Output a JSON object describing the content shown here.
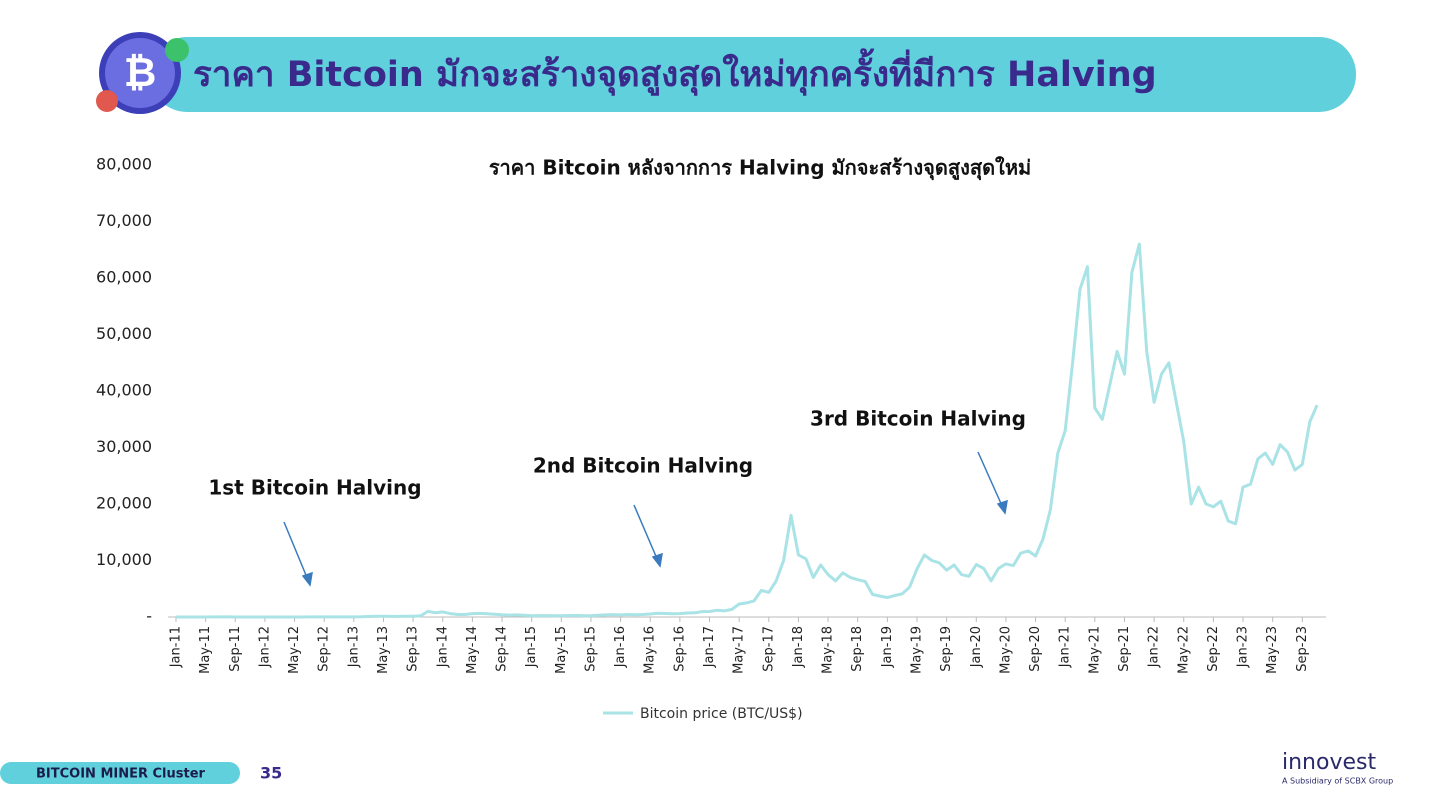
{
  "header": {
    "title": "ราคา Bitcoin มักจะสร้างจุดสูงสุดใหม่ทุกครั้งที่มีการ Halving"
  },
  "chart_data": {
    "type": "line",
    "title": "ราคา Bitcoin หลังจากการ Halving มักจะสร้างจุดสูงสุดใหม่",
    "categories": [
      "Jan-11",
      null,
      null,
      null,
      "May-11",
      null,
      null,
      null,
      "Sep-11",
      null,
      null,
      null,
      "Jan-12",
      null,
      null,
      null,
      "May-12",
      null,
      null,
      null,
      "Sep-12",
      null,
      null,
      null,
      "Jan-13",
      null,
      null,
      null,
      "May-13",
      null,
      null,
      null,
      "Sep-13",
      null,
      null,
      null,
      "Jan-14",
      null,
      null,
      null,
      "May-14",
      null,
      null,
      null,
      "Sep-14",
      null,
      null,
      null,
      "Jan-15",
      null,
      null,
      null,
      "May-15",
      null,
      null,
      null,
      "Sep-15",
      null,
      null,
      null,
      "Jan-16",
      null,
      null,
      null,
      "May-16",
      null,
      null,
      null,
      "Sep-16",
      null,
      null,
      null,
      "Jan-17",
      null,
      null,
      null,
      "May-17",
      null,
      null,
      null,
      "Sep-17",
      null,
      null,
      null,
      "Jan-18",
      null,
      null,
      null,
      "May-18",
      null,
      null,
      null,
      "Sep-18",
      null,
      null,
      null,
      "Jan-19",
      null,
      null,
      null,
      "May-19",
      null,
      null,
      null,
      "Sep-19",
      null,
      null,
      null,
      "Jan-20",
      null,
      null,
      null,
      "May-20",
      null,
      null,
      null,
      "Sep-20",
      null,
      null,
      null,
      "Jan-21",
      null,
      null,
      null,
      "May-21",
      null,
      null,
      null,
      "Sep-21",
      null,
      null,
      null,
      "Jan-22",
      null,
      null,
      null,
      "May-22",
      null,
      null,
      null,
      "Sep-22",
      null,
      null,
      null,
      "Jan-23",
      null,
      null,
      null,
      "May-23",
      null,
      null,
      null,
      "Sep-23",
      null,
      null
    ],
    "series": [
      {
        "name": "Bitcoin price (BTC/US$)",
        "color": "#a9e3e6",
        "values": [
          1,
          1,
          1,
          1,
          8,
          17,
          14,
          9,
          5,
          3,
          3,
          5,
          6,
          5,
          5,
          5,
          5,
          6,
          9,
          11,
          12,
          11,
          12,
          13,
          20,
          33,
          93,
          140,
          130,
          100,
          100,
          130,
          130,
          200,
          1000,
          750,
          900,
          600,
          450,
          450,
          600,
          640,
          590,
          480,
          390,
          340,
          380,
          320,
          220,
          250,
          250,
          230,
          230,
          260,
          285,
          230,
          235,
          310,
          380,
          430,
          370,
          435,
          415,
          450,
          530,
          670,
          625,
          575,
          610,
          700,
          745,
          960,
          970,
          1190,
          1080,
          1350,
          2300,
          2500,
          2850,
          4700,
          4350,
          6400,
          10000,
          18000,
          11000,
          10300,
          7000,
          9200,
          7500,
          6400,
          7800,
          7000,
          6600,
          6300,
          4000,
          3700,
          3450,
          3800,
          4100,
          5300,
          8500,
          11000,
          10000,
          9600,
          8300,
          9200,
          7500,
          7200,
          9300,
          8600,
          6400,
          8600,
          9400,
          9100,
          11300,
          11700,
          10800,
          13800,
          19000,
          29000,
          33000,
          45000,
          58000,
          62000,
          37000,
          35000,
          41000,
          47000,
          43000,
          61000,
          66000,
          47000,
          38000,
          43000,
          45000,
          38000,
          31000,
          20000,
          23000,
          20000,
          19500,
          20500,
          17000,
          16500,
          23000,
          23500,
          28000,
          29000,
          27000,
          30500,
          29200,
          26000,
          27000,
          34500,
          37500
        ]
      }
    ],
    "ylim": [
      0,
      80000
    ],
    "yticks": [
      {
        "value": 0,
        "label": "-"
      },
      {
        "value": 10000,
        "label": "10,000"
      },
      {
        "value": 20000,
        "label": "20,000"
      },
      {
        "value": 30000,
        "label": "30,000"
      },
      {
        "value": 40000,
        "label": "40,000"
      },
      {
        "value": 50000,
        "label": "50,000"
      },
      {
        "value": 60000,
        "label": "60,000"
      },
      {
        "value": 70000,
        "label": "70,000"
      },
      {
        "value": 80000,
        "label": "80,000"
      }
    ],
    "annotations": [
      "1st Bitcoin Halving",
      "2nd Bitcoin Halving",
      "3rd Bitcoin Halving"
    ],
    "legend": "bottom"
  },
  "footer": {
    "cluster": "BITCOIN MINER Cluster",
    "page": "35",
    "logo": "innovest",
    "logo_sub": "A Subsidiary of SCBX Group"
  }
}
